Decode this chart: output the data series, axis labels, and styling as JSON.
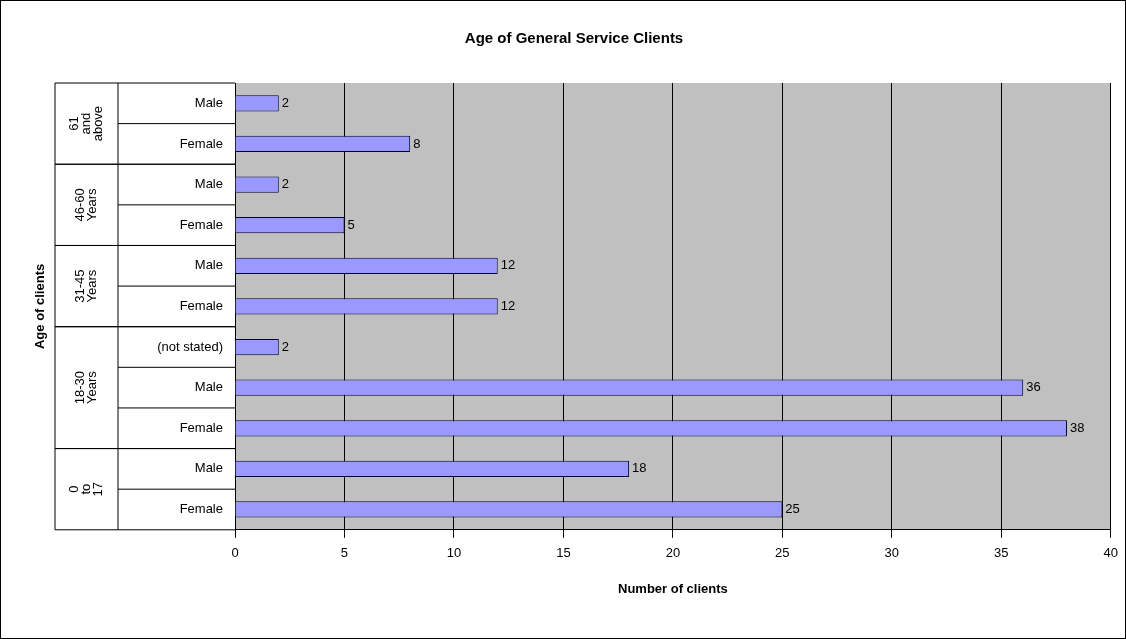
{
  "chart_data": {
    "type": "bar",
    "orientation": "horizontal",
    "title": "Age of General Service Clients",
    "xlabel": "Number of clients",
    "categories": [
      "Male",
      "Female",
      "Male",
      "Female",
      "Male",
      "Female",
      "(not stated)",
      "Male",
      "Female",
      "Male",
      "Female"
    ],
    "values": [
      2,
      8,
      2,
      5,
      12,
      12,
      2,
      36,
      38,
      18,
      25
    ],
    "color": "#9999ff",
    "xlim": [
      0,
      40
    ],
    "xticks": [
      0,
      5,
      10,
      15,
      20,
      25,
      30,
      35,
      40
    ],
    "grid": "x",
    "data_labels": true,
    "annotations": [
      "Age of clients",
      "61 and above",
      "46-60 Years",
      "31-45 Years",
      "18-30 Years",
      "0 to 17"
    ]
  }
}
